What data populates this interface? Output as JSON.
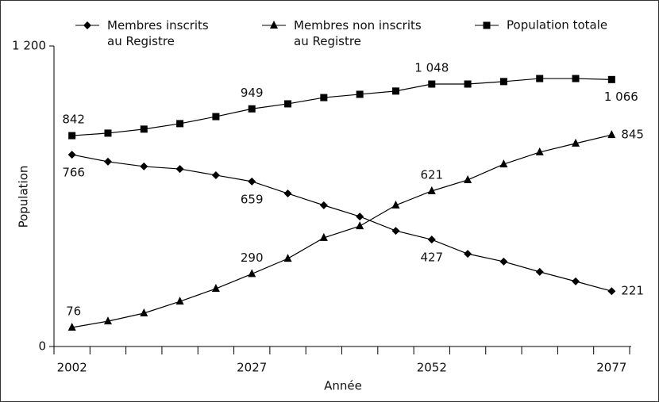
{
  "chart_data": {
    "type": "line",
    "x_label": "Année",
    "y_label": "Population",
    "categories": [
      "2002",
      null,
      null,
      null,
      null,
      "2027",
      null,
      null,
      null,
      null,
      "2052",
      null,
      null,
      null,
      null,
      "2077"
    ],
    "ylim": [
      0,
      1200
    ],
    "yticks": [
      0,
      {
        "value": 1200,
        "label": "1 200"
      }
    ],
    "series": [
      {
        "name": "Membres inscrits\nau Registre",
        "color": "#000000",
        "marker": "diamond",
        "values": [
          766,
          738,
          719,
          709,
          684,
          659,
          611,
          564,
          519,
          462,
          427,
          370,
          339,
          298,
          260,
          221
        ],
        "value_labels": [
          "766",
          null,
          null,
          null,
          null,
          "659",
          null,
          null,
          null,
          null,
          "427",
          null,
          null,
          null,
          null,
          "221"
        ]
      },
      {
        "name": "Membres non inscrits\nau Registre",
        "color": "#000000",
        "marker": "triangle",
        "values": [
          76,
          101,
          133,
          180,
          231,
          290,
          351,
          434,
          481,
          564,
          621,
          665,
          728,
          776,
          811,
          845
        ],
        "value_labels": [
          "76",
          null,
          null,
          null,
          null,
          "290",
          null,
          null,
          null,
          null,
          "621",
          null,
          null,
          null,
          null,
          "845"
        ]
      },
      {
        "name": "Population totale",
        "color": "#000000",
        "marker": "square",
        "values": [
          842,
          852,
          868,
          890,
          918,
          949,
          969,
          994,
          1007,
          1020,
          1048,
          1048,
          1058,
          1070,
          1070,
          1066
        ],
        "value_labels": [
          "842",
          null,
          null,
          null,
          null,
          "949",
          null,
          null,
          null,
          null,
          "1 048",
          null,
          null,
          null,
          null,
          "1 066"
        ]
      }
    ]
  }
}
